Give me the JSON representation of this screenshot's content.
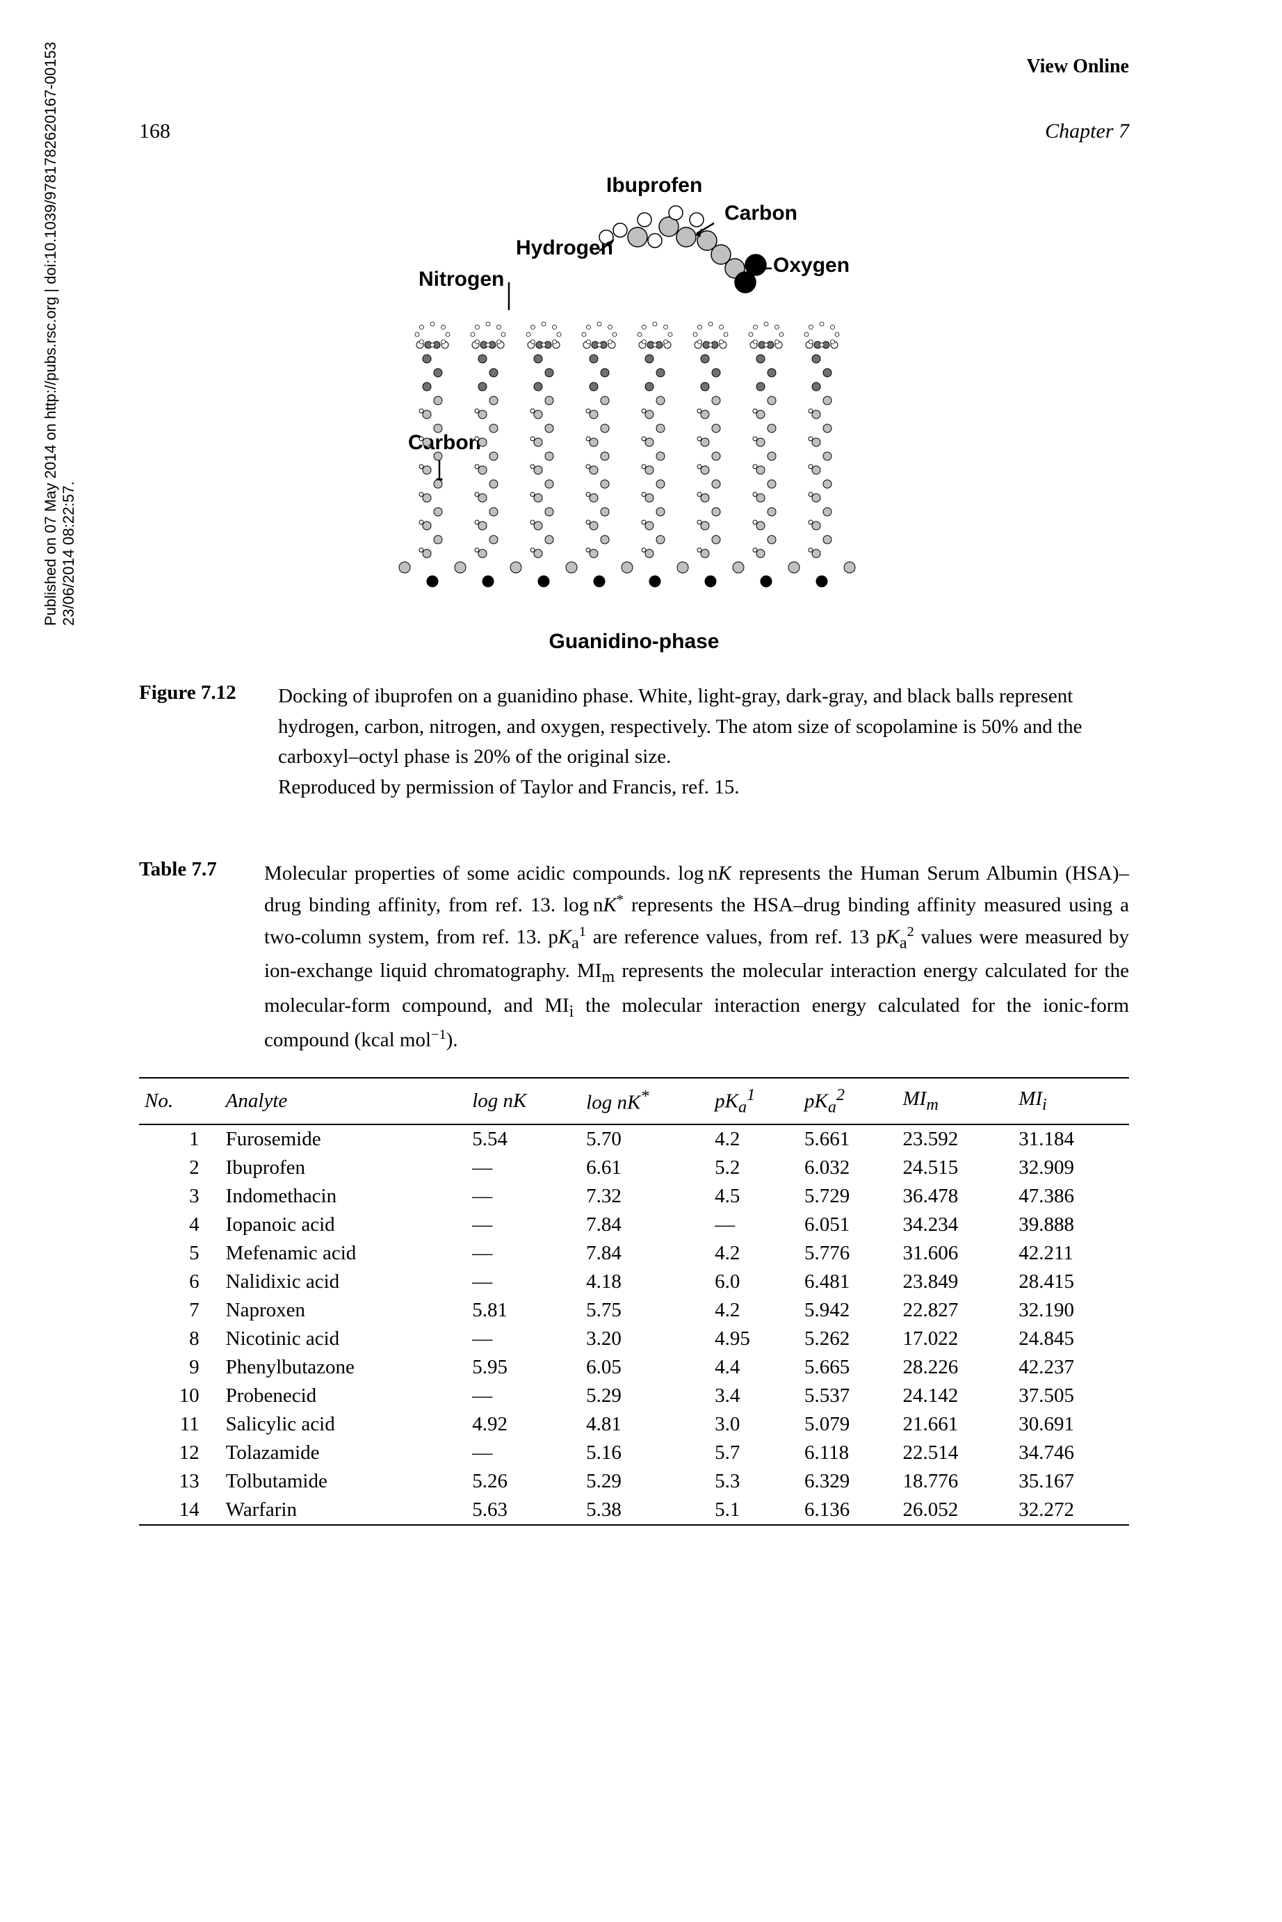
{
  "header": {
    "view_online": "View Online",
    "page_number": "168",
    "chapter": "Chapter 7"
  },
  "sidebar": {
    "line1": "23/06/2014 08:22:57.",
    "line2": "Published on 07 May 2014 on http://pubs.rsc.org | doi:10.1039/9781782620167-00153"
  },
  "figure": {
    "labels": {
      "ibuprofen": "Ibuprofen",
      "carbon_top": "Carbon",
      "hydrogen": "Hydrogen",
      "oxygen": "Oxygen",
      "nitrogen": "Nitrogen",
      "carbon_left": "Carbon",
      "guanidino": "Guanidino-phase"
    },
    "caption_label": "Figure 7.12",
    "caption_text": "Docking of ibuprofen on a guanidino phase. White, light-gray, dark-gray, and black balls represent hydrogen, carbon, nitrogen, and oxygen, respectively. The atom size of scopolamine is 50% and the carboxyl–octyl phase is 20% of the original size.\nReproduced by permission of Taylor and Francis, ref. 15.",
    "colors": {
      "hydrogen": "#ffffff",
      "carbon": "#c0c0c0",
      "nitrogen": "#707070",
      "oxygen": "#000000",
      "outline": "#000000"
    }
  },
  "table": {
    "caption_label": "Table 7.7",
    "caption_parts": {
      "p1": "Molecular properties of some acidic compounds. log n",
      "p1b": "K",
      "p2": " represents the Human Serum Albumin (HSA)–drug binding affinity, from ref. 13. log n",
      "p2b": "K",
      "p2sup": "*",
      "p3": " represents the HSA–drug binding affinity measured using a two-column system, from ref. 13. p",
      "p3b": "K",
      "p3sub": "a",
      "p3sup": "1",
      "p4": " are reference values, from ref. 13 p",
      "p4b": "K",
      "p4sub": "a",
      "p4sup": "2",
      "p5": " values were measured by ion-exchange liquid chromatography. MI",
      "p5sub": "m",
      "p6": " represents the molecular interaction energy calculated for the molecular-form compound, and MI",
      "p6sub": "i",
      "p7": " the molecular interaction energy calculated for the ionic-form compound (kcal mol",
      "p7sup": "−1",
      "p8": ")."
    },
    "columns": [
      "No.",
      "Analyte",
      "log nK",
      "log nK*",
      "pKa1",
      "pKa2",
      "MIm",
      "MIi"
    ],
    "rows": [
      [
        "1",
        "Furosemide",
        "5.54",
        "5.70",
        "4.2",
        "5.661",
        "23.592",
        "31.184"
      ],
      [
        "2",
        "Ibuprofen",
        "—",
        "6.61",
        "5.2",
        "6.032",
        "24.515",
        "32.909"
      ],
      [
        "3",
        "Indomethacin",
        "—",
        "7.32",
        "4.5",
        "5.729",
        "36.478",
        "47.386"
      ],
      [
        "4",
        "Iopanoic acid",
        "—",
        "7.84",
        "—",
        "6.051",
        "34.234",
        "39.888"
      ],
      [
        "5",
        "Mefenamic acid",
        "—",
        "7.84",
        "4.2",
        "5.776",
        "31.606",
        "42.211"
      ],
      [
        "6",
        "Nalidixic acid",
        "—",
        "4.18",
        "6.0",
        "6.481",
        "23.849",
        "28.415"
      ],
      [
        "7",
        "Naproxen",
        "5.81",
        "5.75",
        "4.2",
        "5.942",
        "22.827",
        "32.190"
      ],
      [
        "8",
        "Nicotinic acid",
        "—",
        "3.20",
        "4.95",
        "5.262",
        "17.022",
        "24.845"
      ],
      [
        "9",
        "Phenylbutazone",
        "5.95",
        "6.05",
        "4.4",
        "5.665",
        "28.226",
        "42.237"
      ],
      [
        "10",
        "Probenecid",
        "—",
        "5.29",
        "3.4",
        "5.537",
        "24.142",
        "37.505"
      ],
      [
        "11",
        "Salicylic acid",
        "4.92",
        "4.81",
        "3.0",
        "5.079",
        "21.661",
        "30.691"
      ],
      [
        "12",
        "Tolazamide",
        "—",
        "5.16",
        "5.7",
        "6.118",
        "22.514",
        "34.746"
      ],
      [
        "13",
        "Tolbutamide",
        "5.26",
        "5.29",
        "5.3",
        "6.329",
        "18.776",
        "35.167"
      ],
      [
        "14",
        "Warfarin",
        "5.63",
        "5.38",
        "5.1",
        "6.136",
        "26.052",
        "32.272"
      ]
    ]
  }
}
